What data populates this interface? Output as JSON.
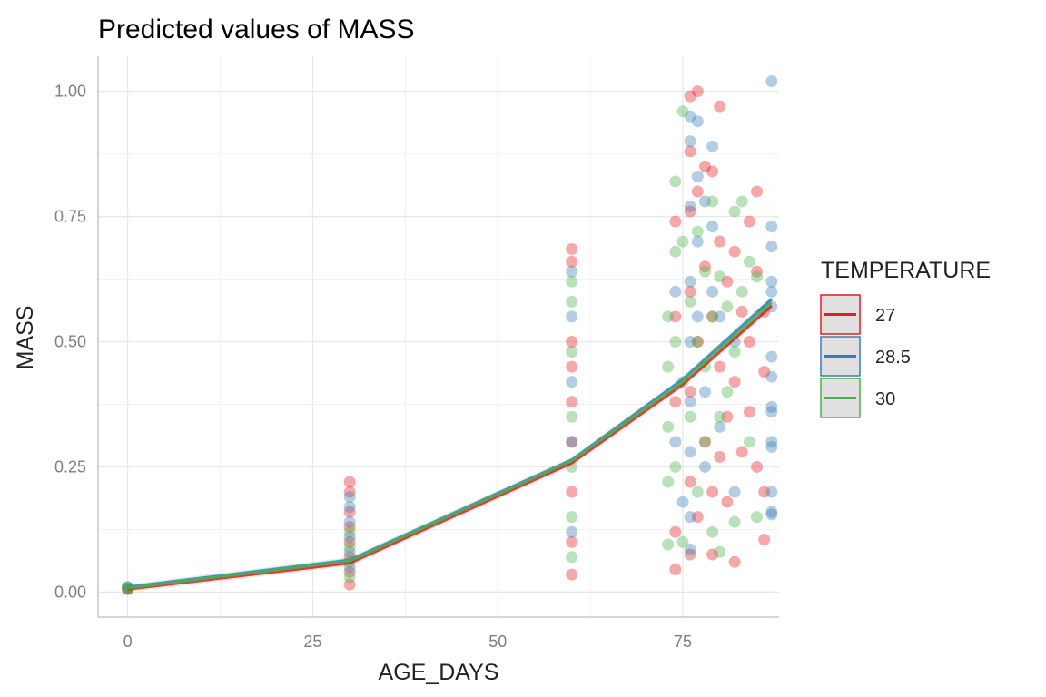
{
  "chart_data": {
    "type": "scatter",
    "title": "Predicted values of MASS",
    "xlabel": "AGE_DAYS",
    "ylabel": "MASS",
    "xlim": [
      -4,
      88
    ],
    "ylim": [
      -0.05,
      1.07
    ],
    "x_ticks": [
      0,
      25,
      50,
      75
    ],
    "x_tick_labels": [
      "0",
      "25",
      "50",
      "75"
    ],
    "y_ticks": [
      0,
      0.25,
      0.5,
      0.75,
      1
    ],
    "y_tick_labels": [
      "0.00",
      "0.25",
      "0.50",
      "0.75",
      "1.00"
    ],
    "grid": true,
    "legend": {
      "title": "TEMPERATURE",
      "position": "right",
      "labels": [
        "27",
        "28.5",
        "30"
      ]
    },
    "series": [
      {
        "name": "27",
        "color": "#e41a1c",
        "line_x": [
          0,
          30,
          60,
          75,
          87
        ],
        "line_y": [
          0.006,
          0.058,
          0.258,
          0.415,
          0.572
        ],
        "points": [
          [
            30,
            0.22
          ],
          [
            30,
            0.2
          ],
          [
            30,
            0.16
          ],
          [
            30,
            0.13
          ],
          [
            30,
            0.1
          ],
          [
            30,
            0.07
          ],
          [
            30,
            0.04
          ],
          [
            30,
            0.015
          ],
          [
            60,
            0.685
          ],
          [
            60,
            0.66
          ],
          [
            60,
            0.5
          ],
          [
            60,
            0.45
          ],
          [
            60,
            0.38
          ],
          [
            60,
            0.3
          ],
          [
            60,
            0.2
          ],
          [
            60,
            0.1
          ],
          [
            60,
            0.035
          ],
          [
            74,
            0.74
          ],
          [
            74,
            0.55
          ],
          [
            74,
            0.38
          ],
          [
            74,
            0.12
          ],
          [
            74,
            0.045
          ],
          [
            76,
            0.99
          ],
          [
            76,
            0.88
          ],
          [
            76,
            0.76
          ],
          [
            76,
            0.6
          ],
          [
            76,
            0.4
          ],
          [
            76,
            0.22
          ],
          [
            76,
            0.075
          ],
          [
            77,
            1.0
          ],
          [
            77,
            0.8
          ],
          [
            77,
            0.5
          ],
          [
            77,
            0.15
          ],
          [
            78,
            0.85
          ],
          [
            78,
            0.65
          ],
          [
            78,
            0.3
          ],
          [
            79,
            0.84
          ],
          [
            79,
            0.55
          ],
          [
            79,
            0.2
          ],
          [
            79,
            0.075
          ],
          [
            80,
            0.97
          ],
          [
            80,
            0.7
          ],
          [
            80,
            0.45
          ],
          [
            80,
            0.27
          ],
          [
            81,
            0.62
          ],
          [
            81,
            0.35
          ],
          [
            81,
            0.18
          ],
          [
            82,
            0.68
          ],
          [
            82,
            0.42
          ],
          [
            82,
            0.06
          ],
          [
            83,
            0.56
          ],
          [
            83,
            0.28
          ],
          [
            84,
            0.74
          ],
          [
            84,
            0.5
          ],
          [
            84,
            0.36
          ],
          [
            85,
            0.8
          ],
          [
            85,
            0.64
          ],
          [
            85,
            0.25
          ],
          [
            86,
            0.56
          ],
          [
            86,
            0.44
          ],
          [
            86,
            0.2
          ],
          [
            86,
            0.105
          ]
        ]
      },
      {
        "name": "28.5",
        "color": "#377eb8",
        "line_x": [
          0,
          30,
          60,
          75,
          87
        ],
        "line_y": [
          0.01,
          0.064,
          0.264,
          0.425,
          0.585
        ],
        "points": [
          [
            30,
            0.19
          ],
          [
            30,
            0.17
          ],
          [
            30,
            0.14
          ],
          [
            30,
            0.11
          ],
          [
            30,
            0.08
          ],
          [
            30,
            0.05
          ],
          [
            60,
            0.64
          ],
          [
            60,
            0.55
          ],
          [
            60,
            0.42
          ],
          [
            60,
            0.3
          ],
          [
            60,
            0.12
          ],
          [
            74,
            0.6
          ],
          [
            74,
            0.3
          ],
          [
            75,
            0.18
          ],
          [
            76,
            0.95
          ],
          [
            76,
            0.9
          ],
          [
            76,
            0.77
          ],
          [
            76,
            0.62
          ],
          [
            76,
            0.5
          ],
          [
            76,
            0.38
          ],
          [
            76,
            0.28
          ],
          [
            76,
            0.15
          ],
          [
            76,
            0.085
          ],
          [
            77,
            0.94
          ],
          [
            77,
            0.83
          ],
          [
            77,
            0.7
          ],
          [
            77,
            0.55
          ],
          [
            78,
            0.78
          ],
          [
            78,
            0.4
          ],
          [
            78,
            0.25
          ],
          [
            79,
            0.89
          ],
          [
            79,
            0.73
          ],
          [
            79,
            0.6
          ],
          [
            80,
            0.55
          ],
          [
            80,
            0.33
          ],
          [
            82,
            0.5
          ],
          [
            82,
            0.2
          ],
          [
            87,
            1.02
          ],
          [
            87,
            0.73
          ],
          [
            87,
            0.69
          ],
          [
            87,
            0.62
          ],
          [
            87,
            0.6
          ],
          [
            87,
            0.57
          ],
          [
            87,
            0.47
          ],
          [
            87,
            0.43
          ],
          [
            87,
            0.37
          ],
          [
            87,
            0.36
          ],
          [
            87,
            0.3
          ],
          [
            87,
            0.29
          ],
          [
            87,
            0.2
          ],
          [
            87,
            0.16
          ],
          [
            87,
            0.155
          ]
        ]
      },
      {
        "name": "30",
        "color": "#4daf4a",
        "line_x": [
          0,
          30,
          60,
          75,
          87
        ],
        "line_y": [
          0.008,
          0.062,
          0.262,
          0.42,
          0.578
        ],
        "points": [
          [
            30,
            0.12
          ],
          [
            30,
            0.09
          ],
          [
            30,
            0.06
          ],
          [
            30,
            0.03
          ],
          [
            60,
            0.62
          ],
          [
            60,
            0.58
          ],
          [
            60,
            0.48
          ],
          [
            60,
            0.35
          ],
          [
            60,
            0.25
          ],
          [
            60,
            0.15
          ],
          [
            60,
            0.07
          ],
          [
            73,
            0.55
          ],
          [
            73,
            0.45
          ],
          [
            73,
            0.33
          ],
          [
            73,
            0.22
          ],
          [
            73,
            0.095
          ],
          [
            74,
            0.82
          ],
          [
            74,
            0.68
          ],
          [
            74,
            0.5
          ],
          [
            74,
            0.25
          ],
          [
            75,
            0.96
          ],
          [
            75,
            0.7
          ],
          [
            75,
            0.42
          ],
          [
            75,
            0.1
          ],
          [
            76,
            0.58
          ],
          [
            76,
            0.35
          ],
          [
            77,
            0.72
          ],
          [
            77,
            0.5
          ],
          [
            77,
            0.2
          ],
          [
            78,
            0.64
          ],
          [
            78,
            0.45
          ],
          [
            78,
            0.3
          ],
          [
            79,
            0.78
          ],
          [
            79,
            0.55
          ],
          [
            79,
            0.12
          ],
          [
            80,
            0.63
          ],
          [
            80,
            0.35
          ],
          [
            80,
            0.08
          ],
          [
            81,
            0.57
          ],
          [
            81,
            0.4
          ],
          [
            82,
            0.76
          ],
          [
            82,
            0.48
          ],
          [
            82,
            0.14
          ],
          [
            83,
            0.78
          ],
          [
            83,
            0.6
          ],
          [
            84,
            0.66
          ],
          [
            84,
            0.3
          ],
          [
            85,
            0.63
          ],
          [
            85,
            0.15
          ]
        ]
      }
    ]
  }
}
